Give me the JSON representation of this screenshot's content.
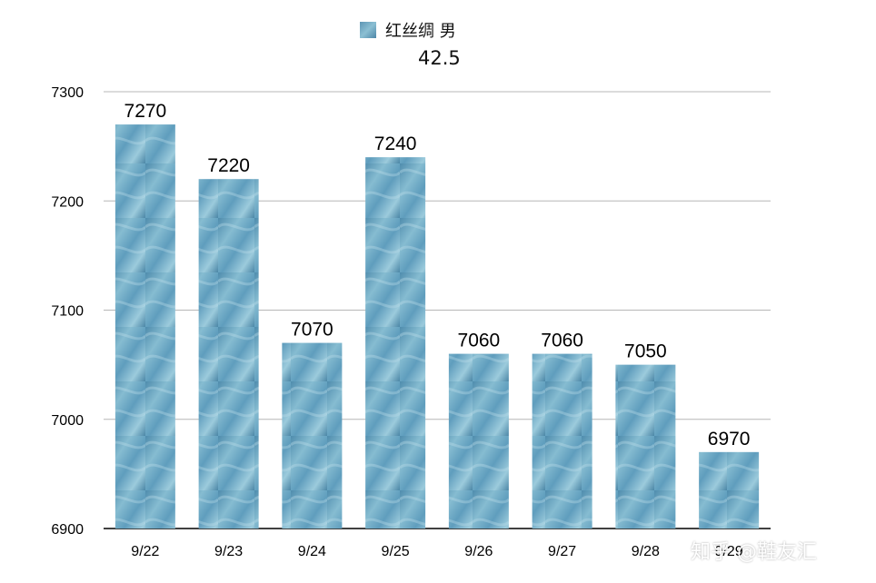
{
  "legend": {
    "series_name": "红丝绸 男"
  },
  "subtitle": "42.5",
  "watermark": "知乎 @鞋友汇",
  "colors": {
    "bar": "#6ea7c3",
    "grid": "#b7b7b7",
    "axis": "#000000",
    "text": "#000000"
  },
  "chart_data": {
    "type": "bar",
    "categories": [
      "9/22",
      "9/23",
      "9/24",
      "9/25",
      "9/26",
      "9/27",
      "9/28",
      "9/29"
    ],
    "series": [
      {
        "name": "红丝绸 男",
        "values": [
          7270,
          7220,
          7070,
          7240,
          7060,
          7060,
          7050,
          6970
        ]
      }
    ],
    "ylim": [
      6900,
      7300
    ],
    "yticks": [
      6900,
      7000,
      7100,
      7200,
      7300
    ],
    "grid": true,
    "legend_position": "top-center",
    "data_labels": true,
    "title": "",
    "xlabel": "",
    "ylabel": ""
  }
}
